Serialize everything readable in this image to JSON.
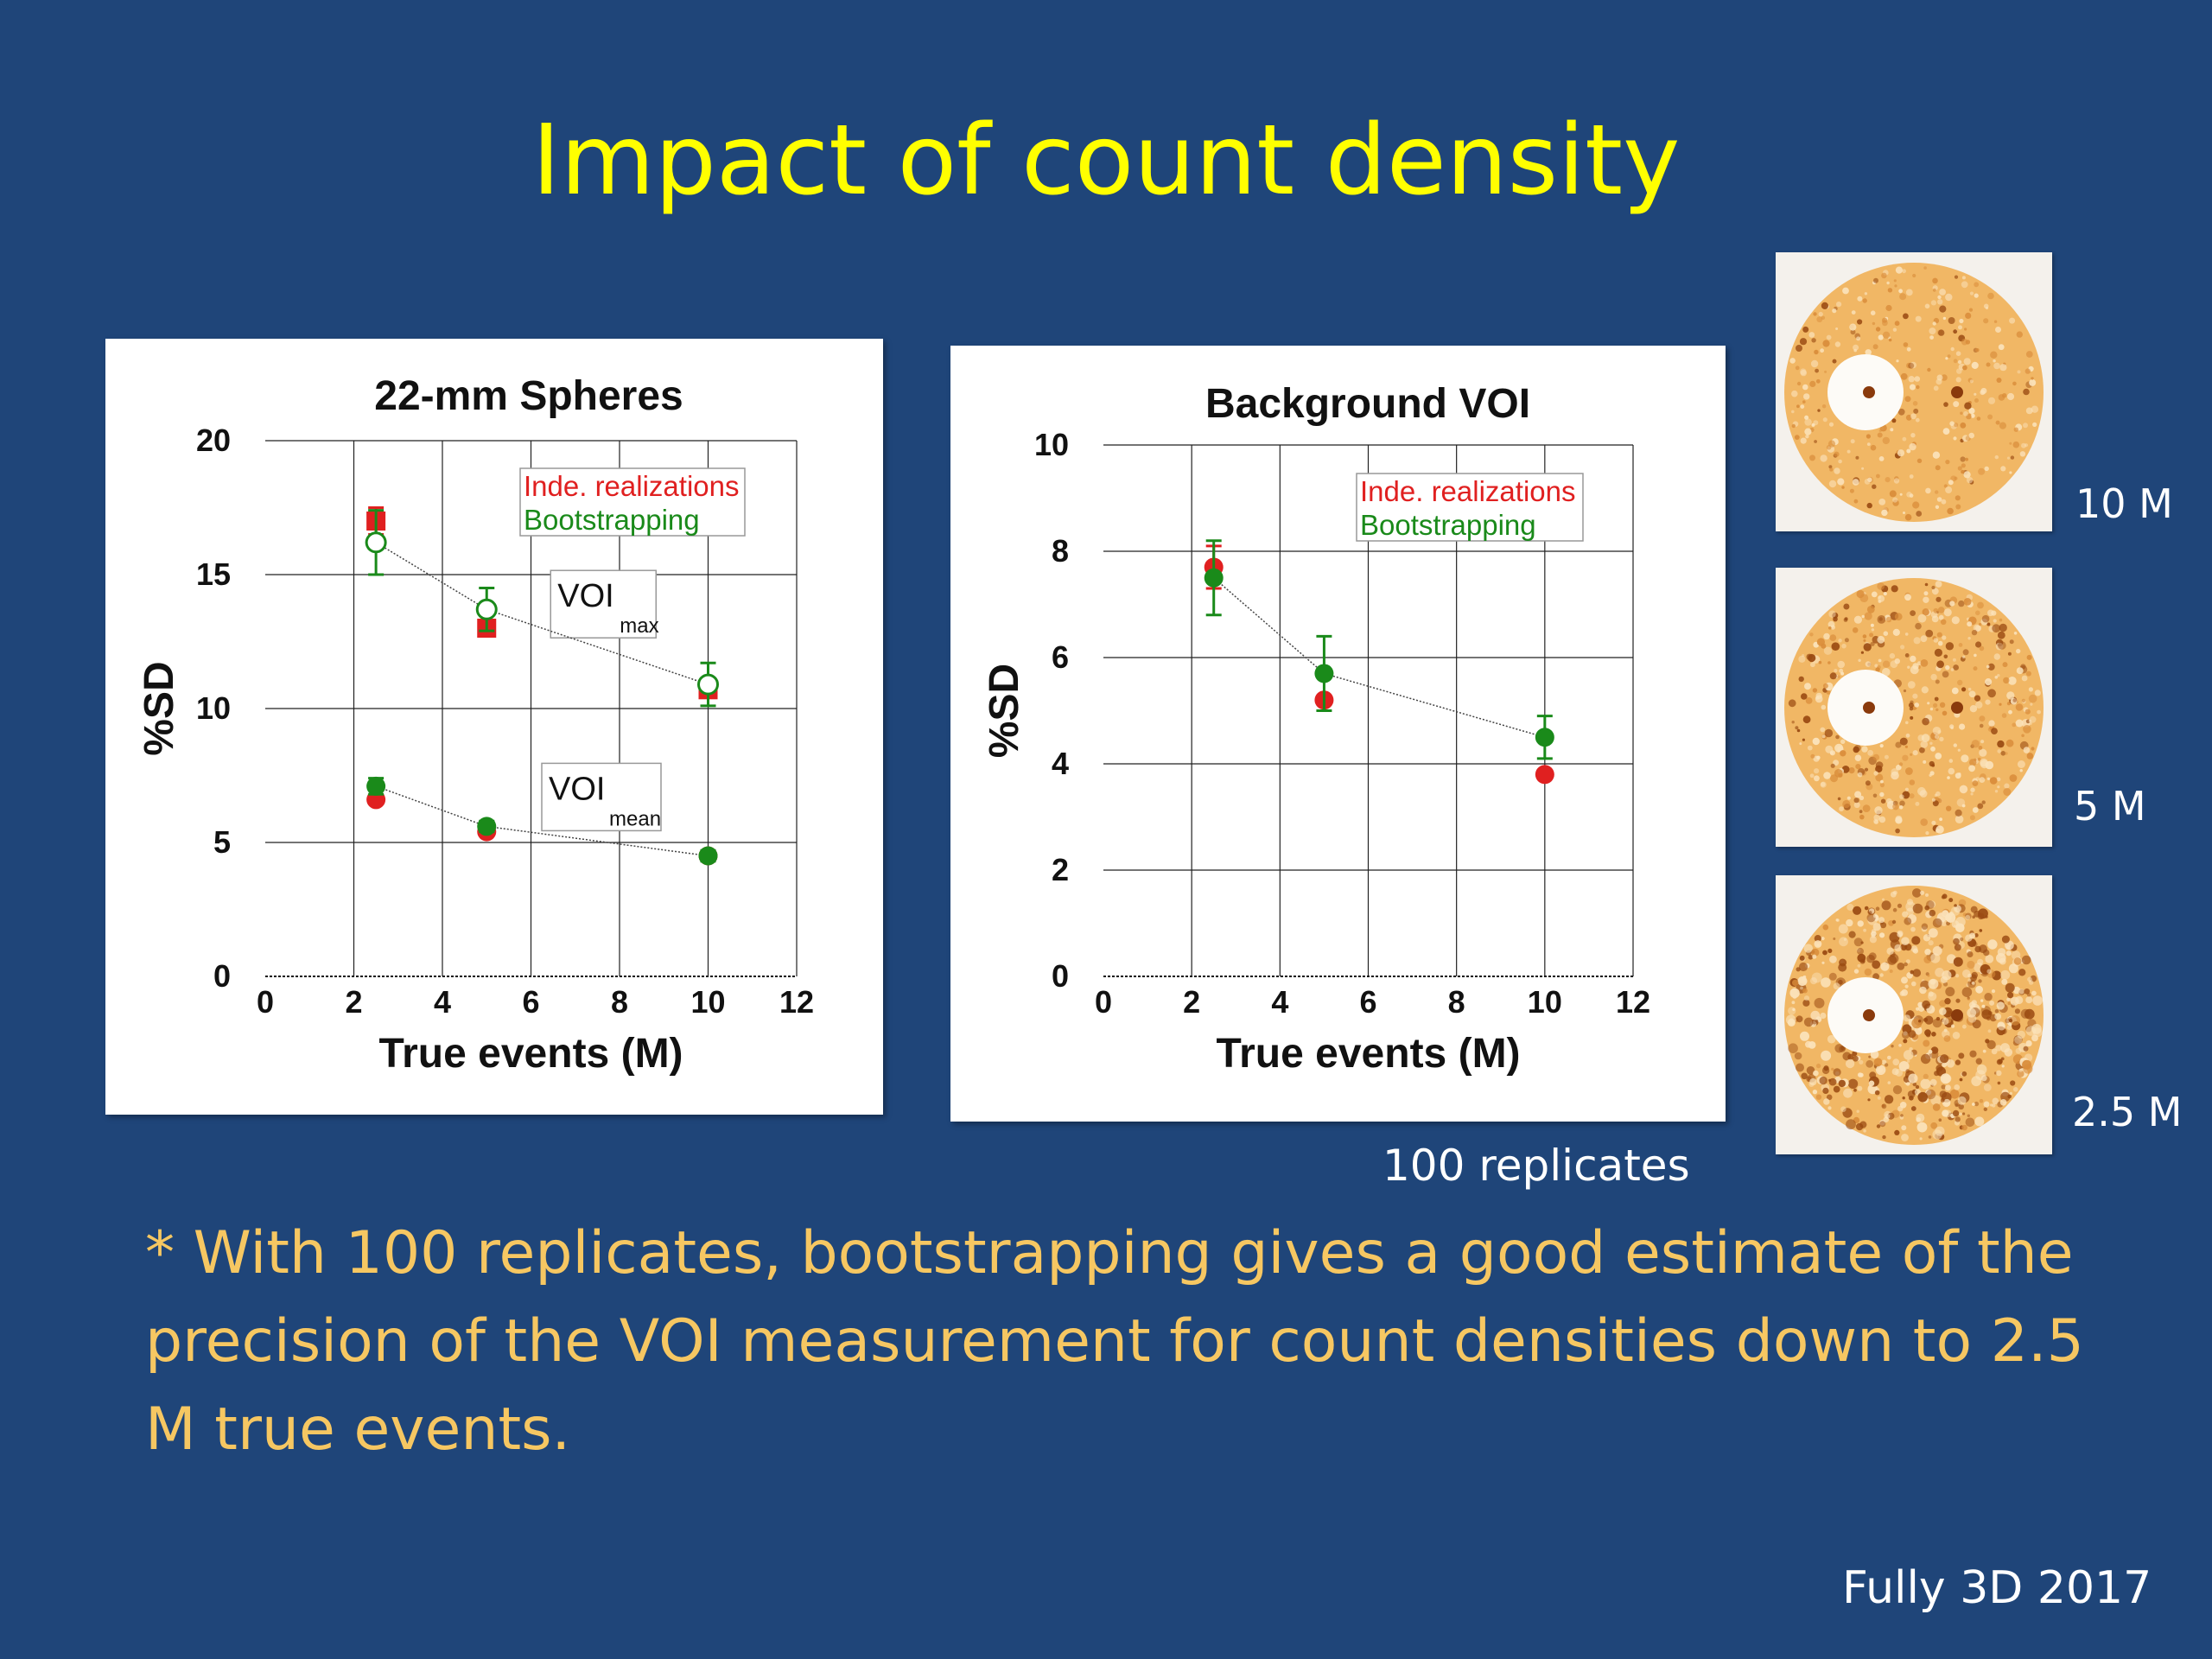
{
  "slide": {
    "title": "Impact of count density",
    "replicates_note": "100 replicates",
    "conclusion": "* With 100 replicates, bootstrapping gives a good estimate of the precision of the VOI measurement for count densities down to 2.5 M true events.",
    "footer": "Fully 3D 2017"
  },
  "phantom_images": [
    {
      "label": "10 M",
      "noise_level": 0.25
    },
    {
      "label": "5 M",
      "noise_level": 0.5
    },
    {
      "label": "2.5 M",
      "noise_level": 0.85
    }
  ],
  "colors": {
    "background": "#1f4579",
    "title": "#ffff00",
    "conclusion": "#f6c762",
    "indep": "#e02020",
    "boot": "#1a8a1a"
  },
  "chart_data": [
    {
      "type": "scatter",
      "title": "22-mm Spheres",
      "xlabel": "True events (M)",
      "ylabel": "%SD",
      "xlim": [
        0,
        12
      ],
      "ylim": [
        0,
        20
      ],
      "xticks": [
        0,
        2,
        4,
        6,
        8,
        10,
        12
      ],
      "yticks": [
        0,
        5,
        10,
        15,
        20
      ],
      "grid": true,
      "legend": {
        "position": "top-right",
        "entries": [
          "Inde. realizations",
          "Bootstrapping"
        ]
      },
      "annotations": [
        {
          "text": "VOI",
          "sub": "max",
          "x": 6.6,
          "y": 13.8
        },
        {
          "text": "VOI",
          "sub": "mean",
          "x": 6.4,
          "y": 6.6
        }
      ],
      "series": [
        {
          "name": "Inde. realizations",
          "group": "max",
          "marker": "square",
          "color": "#e02020",
          "x": [
            2.5,
            5,
            10
          ],
          "y": [
            17.0,
            13.0,
            10.7
          ],
          "yerr": [
            0.5,
            0,
            0
          ]
        },
        {
          "name": "Bootstrapping",
          "group": "max",
          "marker": "open-circle",
          "color": "#1a8a1a",
          "x": [
            2.5,
            5,
            10
          ],
          "y": [
            16.2,
            13.7,
            10.9
          ],
          "yerr": [
            1.2,
            0.8,
            0.8
          ],
          "line": "dotted"
        },
        {
          "name": "Inde. realizations",
          "group": "mean",
          "marker": "circle",
          "color": "#e02020",
          "x": [
            2.5,
            5,
            10
          ],
          "y": [
            6.6,
            5.4,
            4.5
          ],
          "yerr": [
            0,
            0,
            0
          ]
        },
        {
          "name": "Bootstrapping",
          "group": "mean",
          "marker": "circle",
          "color": "#1a8a1a",
          "x": [
            2.5,
            5,
            10
          ],
          "y": [
            7.1,
            5.6,
            4.5
          ],
          "yerr": [
            0.3,
            0.2,
            0.2
          ],
          "line": "dotted"
        }
      ]
    },
    {
      "type": "scatter",
      "title": "Background VOI",
      "xlabel": "True events (M)",
      "ylabel": "%SD",
      "xlim": [
        0,
        12
      ],
      "ylim": [
        0,
        10
      ],
      "xticks": [
        0,
        2,
        4,
        6,
        8,
        10,
        12
      ],
      "yticks": [
        0,
        2,
        4,
        6,
        8,
        10
      ],
      "grid": true,
      "legend": {
        "position": "top-right",
        "entries": [
          "Inde. realizations",
          "Bootstrapping"
        ]
      },
      "annotations": [],
      "series": [
        {
          "name": "Inde. realizations",
          "group": "bg",
          "marker": "circle",
          "color": "#e02020",
          "x": [
            2.5,
            5,
            10
          ],
          "y": [
            7.7,
            5.2,
            3.8
          ],
          "yerr": [
            0.4,
            0,
            0
          ]
        },
        {
          "name": "Bootstrapping",
          "group": "bg",
          "marker": "circle",
          "color": "#1a8a1a",
          "x": [
            2.5,
            5,
            10
          ],
          "y": [
            7.5,
            5.7,
            4.5
          ],
          "yerr": [
            0.7,
            0.7,
            0.4
          ],
          "line": "dotted"
        }
      ]
    }
  ]
}
